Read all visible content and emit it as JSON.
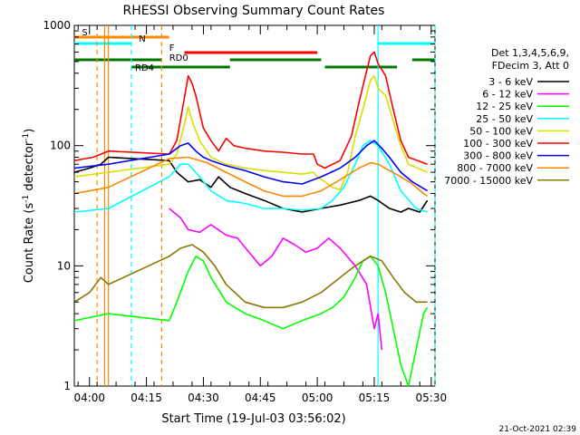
{
  "chart_data": {
    "type": "line",
    "title": "RHESSI Observing Summary Count Rates",
    "xlabel": "Start Time (19-Jul-03 03:56:02)",
    "ylabel_prefix": "Count Rate (s",
    "ylabel_sup": "-1",
    "ylabel_mid": " detector",
    "ylabel_sup2": "-1",
    "ylabel_suffix": ")",
    "ylog": true,
    "ylim": [
      1,
      1000
    ],
    "xlim_min": [
      0,
      95
    ],
    "y_ticks": [
      {
        "v": 1,
        "label": "1"
      },
      {
        "v": 10,
        "label": "10"
      },
      {
        "v": 100,
        "label": "100"
      },
      {
        "v": 1000,
        "label": "1000"
      }
    ],
    "x_ticks": [
      {
        "t": 4,
        "label": "04:00"
      },
      {
        "t": 19,
        "label": "04:15"
      },
      {
        "t": 34,
        "label": "04:30"
      },
      {
        "t": 49,
        "label": "04:45"
      },
      {
        "t": 64,
        "label": "05:00"
      },
      {
        "t": 79,
        "label": "05:15"
      },
      {
        "t": 94,
        "label": "05:30"
      }
    ],
    "legend_header": [
      "Det 1,3,4,5,6,9,",
      "FDecim 3, Att 0"
    ],
    "series": [
      {
        "name": "3 - 6 keV",
        "color": "#000000",
        "points": [
          [
            0,
            60
          ],
          [
            4,
            65
          ],
          [
            7,
            70
          ],
          [
            9,
            80
          ],
          [
            25,
            75
          ],
          [
            27,
            60
          ],
          [
            30,
            50
          ],
          [
            33,
            52
          ],
          [
            36,
            45
          ],
          [
            38,
            55
          ],
          [
            41,
            45
          ],
          [
            45,
            40
          ],
          [
            50,
            35
          ],
          [
            55,
            30
          ],
          [
            60,
            28
          ],
          [
            65,
            30
          ],
          [
            70,
            32
          ],
          [
            75,
            35
          ],
          [
            78,
            38
          ],
          [
            80,
            35
          ],
          [
            83,
            30
          ],
          [
            86,
            28
          ],
          [
            88,
            30
          ],
          [
            91,
            28
          ],
          [
            93,
            35
          ]
        ]
      },
      {
        "name": "6 - 12 keV",
        "color": "#ff00ff",
        "points": [
          [
            25,
            30
          ],
          [
            28,
            25
          ],
          [
            30,
            20
          ],
          [
            33,
            19
          ],
          [
            36,
            22
          ],
          [
            40,
            18
          ],
          [
            43,
            17
          ],
          [
            46,
            13
          ],
          [
            49,
            10
          ],
          [
            52,
            12
          ],
          [
            55,
            17
          ],
          [
            58,
            15
          ],
          [
            61,
            13
          ],
          [
            64,
            14
          ],
          [
            67,
            17
          ],
          [
            70,
            14
          ],
          [
            74,
            10
          ],
          [
            77,
            7
          ],
          [
            79,
            3
          ],
          [
            80,
            4
          ],
          [
            81,
            2
          ]
        ]
      },
      {
        "name": "12 - 25 keV",
        "color": "#00ff00",
        "points": [
          [
            0,
            3.5
          ],
          [
            9,
            4
          ],
          [
            25,
            3.5
          ],
          [
            27,
            5
          ],
          [
            30,
            9
          ],
          [
            32,
            12
          ],
          [
            34,
            11
          ],
          [
            36,
            8
          ],
          [
            40,
            5
          ],
          [
            45,
            4
          ],
          [
            50,
            3.5
          ],
          [
            55,
            3
          ],
          [
            60,
            3.5
          ],
          [
            65,
            4
          ],
          [
            68,
            4.5
          ],
          [
            71,
            5.5
          ],
          [
            74,
            8
          ],
          [
            76,
            11
          ],
          [
            78,
            12
          ],
          [
            80,
            10
          ],
          [
            82,
            6
          ],
          [
            84,
            3
          ],
          [
            86,
            1.5
          ],
          [
            88,
            1
          ],
          [
            92,
            4
          ],
          [
            93,
            4.5
          ]
        ]
      },
      {
        "name": "25 - 50 keV",
        "color": "#00ffff",
        "points": [
          [
            0,
            28
          ],
          [
            9,
            30
          ],
          [
            25,
            55
          ],
          [
            28,
            70
          ],
          [
            30,
            70
          ],
          [
            33,
            55
          ],
          [
            36,
            42
          ],
          [
            40,
            35
          ],
          [
            45,
            33
          ],
          [
            50,
            30
          ],
          [
            55,
            30
          ],
          [
            60,
            29
          ],
          [
            65,
            30
          ],
          [
            68,
            35
          ],
          [
            71,
            45
          ],
          [
            74,
            70
          ],
          [
            76,
            100
          ],
          [
            78,
            110
          ],
          [
            80,
            100
          ],
          [
            83,
            70
          ],
          [
            86,
            42
          ],
          [
            90,
            30
          ],
          [
            93,
            28
          ]
        ]
      },
      {
        "name": "50 - 100 keV",
        "color": "#dddd00",
        "points": [
          [
            0,
            55
          ],
          [
            9,
            60
          ],
          [
            25,
            70
          ],
          [
            27,
            85
          ],
          [
            29,
            150
          ],
          [
            30,
            210
          ],
          [
            31,
            160
          ],
          [
            33,
            110
          ],
          [
            36,
            80
          ],
          [
            40,
            70
          ],
          [
            45,
            65
          ],
          [
            50,
            62
          ],
          [
            55,
            60
          ],
          [
            60,
            58
          ],
          [
            63,
            60
          ],
          [
            64,
            55
          ],
          [
            66,
            50
          ],
          [
            68,
            45
          ],
          [
            70,
            43
          ],
          [
            72,
            60
          ],
          [
            74,
            120
          ],
          [
            76,
            200
          ],
          [
            78,
            350
          ],
          [
            79,
            380
          ],
          [
            80,
            300
          ],
          [
            82,
            260
          ],
          [
            84,
            160
          ],
          [
            86,
            100
          ],
          [
            88,
            70
          ],
          [
            93,
            60
          ]
        ]
      },
      {
        "name": "100 - 300 keV",
        "color": "#ff0000",
        "points": [
          [
            0,
            75
          ],
          [
            5,
            80
          ],
          [
            9,
            90
          ],
          [
            25,
            85
          ],
          [
            27,
            110
          ],
          [
            29,
            250
          ],
          [
            30,
            380
          ],
          [
            31,
            330
          ],
          [
            32,
            260
          ],
          [
            34,
            140
          ],
          [
            36,
            110
          ],
          [
            38,
            90
          ],
          [
            40,
            115
          ],
          [
            42,
            100
          ],
          [
            45,
            95
          ],
          [
            50,
            90
          ],
          [
            55,
            88
          ],
          [
            60,
            85
          ],
          [
            63,
            85
          ],
          [
            64,
            70
          ],
          [
            66,
            65
          ],
          [
            70,
            75
          ],
          [
            73,
            120
          ],
          [
            75,
            230
          ],
          [
            77,
            420
          ],
          [
            78,
            560
          ],
          [
            79,
            600
          ],
          [
            80,
            480
          ],
          [
            82,
            380
          ],
          [
            84,
            200
          ],
          [
            86,
            110
          ],
          [
            88,
            80
          ],
          [
            93,
            70
          ]
        ]
      },
      {
        "name": "300 - 800 keV",
        "color": "#0000ff",
        "points": [
          [
            0,
            65
          ],
          [
            9,
            70
          ],
          [
            25,
            85
          ],
          [
            28,
            100
          ],
          [
            30,
            105
          ],
          [
            32,
            90
          ],
          [
            34,
            80
          ],
          [
            36,
            75
          ],
          [
            40,
            68
          ],
          [
            45,
            62
          ],
          [
            50,
            55
          ],
          [
            55,
            50
          ],
          [
            60,
            48
          ],
          [
            65,
            55
          ],
          [
            70,
            65
          ],
          [
            74,
            80
          ],
          [
            77,
            100
          ],
          [
            79,
            110
          ],
          [
            81,
            95
          ],
          [
            83,
            80
          ],
          [
            86,
            60
          ],
          [
            89,
            50
          ],
          [
            93,
            42
          ]
        ]
      },
      {
        "name": "800 - 7000 keV",
        "color": "#ff8800",
        "points": [
          [
            0,
            40
          ],
          [
            4,
            42
          ],
          [
            9,
            45
          ],
          [
            25,
            78
          ],
          [
            30,
            80
          ],
          [
            35,
            72
          ],
          [
            40,
            60
          ],
          [
            45,
            50
          ],
          [
            50,
            42
          ],
          [
            55,
            38
          ],
          [
            60,
            38
          ],
          [
            65,
            42
          ],
          [
            70,
            52
          ],
          [
            75,
            65
          ],
          [
            78,
            72
          ],
          [
            80,
            70
          ],
          [
            83,
            62
          ],
          [
            86,
            55
          ],
          [
            89,
            48
          ],
          [
            92,
            40
          ],
          [
            93,
            38
          ]
        ]
      },
      {
        "name": "7000 - 15000 keV",
        "color": "#887700",
        "points": [
          [
            0,
            5
          ],
          [
            4,
            6
          ],
          [
            7,
            8
          ],
          [
            9,
            7
          ],
          [
            25,
            12
          ],
          [
            28,
            14
          ],
          [
            31,
            15
          ],
          [
            34,
            13
          ],
          [
            37,
            10
          ],
          [
            40,
            7
          ],
          [
            45,
            5
          ],
          [
            50,
            4.5
          ],
          [
            55,
            4.5
          ],
          [
            60,
            5
          ],
          [
            65,
            6
          ],
          [
            70,
            8
          ],
          [
            74,
            10
          ],
          [
            78,
            12
          ],
          [
            81,
            11
          ],
          [
            84,
            8
          ],
          [
            87,
            6
          ],
          [
            90,
            5
          ],
          [
            93,
            5
          ]
        ]
      }
    ],
    "state_bars": [
      {
        "label": "S",
        "color": "#ff8800",
        "t0": 0,
        "t1": 25,
        "level": "s",
        "label_t": 2
      },
      {
        "label": "N",
        "color": "#00ffff",
        "t0": 0,
        "t1": 15,
        "level": "n",
        "label_t": 17
      },
      {
        "label": "N",
        "color": "#00ffff",
        "t0": 80,
        "t1": 95,
        "level": "n",
        "label_t": null
      },
      {
        "label": "F",
        "color": "#ff0000",
        "t0": 29,
        "t1": 64,
        "level": "f",
        "label_t": 25
      },
      {
        "label": "RD0",
        "color": "#007700",
        "t0": 0,
        "t1": 23,
        "level": "rd0",
        "label_t": 25
      },
      {
        "label": "RD0",
        "color": "#007700",
        "t0": 41,
        "t1": 65,
        "level": "rd0",
        "label_t": null
      },
      {
        "label": "RD0",
        "color": "#007700",
        "t0": 89,
        "t1": 95,
        "level": "rd0",
        "label_t": null
      },
      {
        "label": "RD4",
        "color": "#007700",
        "t0": 15,
        "t1": 41,
        "level": "rd4",
        "label_t": 16
      },
      {
        "label": "RD4",
        "color": "#007700",
        "t0": 66,
        "t1": 85,
        "level": "rd4",
        "label_t": null
      }
    ],
    "vlines": [
      {
        "t": 6,
        "color": "#ff8800",
        "dash": true
      },
      {
        "t": 8,
        "color": "#ff8800",
        "dash": false
      },
      {
        "t": 9,
        "color": "#ff8800",
        "dash": false
      },
      {
        "t": 15,
        "color": "#00ffff",
        "dash": true
      },
      {
        "t": 23,
        "color": "#ff8800",
        "dash": true
      },
      {
        "t": 80,
        "color": "#00ffff",
        "dash": false
      },
      {
        "t": 95,
        "color": "#00ffff",
        "dash": true
      }
    ],
    "legend_placement": "right",
    "grid": false
  },
  "footer": {
    "date_stamp": "21-Oct-2021 02:39"
  }
}
